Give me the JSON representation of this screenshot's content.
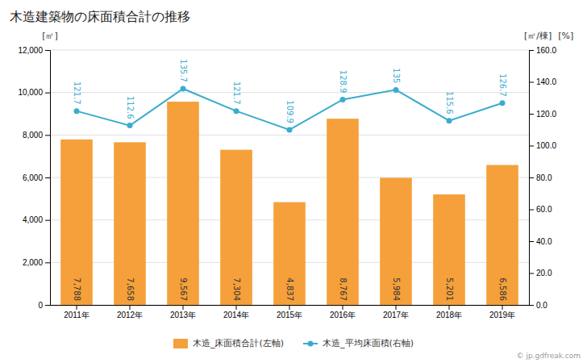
{
  "chart_data": {
    "type": "bar",
    "title": "木造建築物の床面積合計の推移",
    "categories": [
      "2011年",
      "2012年",
      "2013年",
      "2014年",
      "2015年",
      "2016年",
      "2017年",
      "2018年",
      "2019年"
    ],
    "series": [
      {
        "name": "木造_床面積合計(左軸)",
        "type": "bar",
        "color": "#f5a03a",
        "values": [
          7788,
          7658,
          9567,
          7304,
          4837,
          8767,
          5984,
          5201,
          6586
        ],
        "value_labels": [
          "7,788",
          "7,658",
          "9,567",
          "7,304",
          "4,837",
          "8,767",
          "5,984",
          "5,201",
          "6,586"
        ],
        "data_labels": true
      },
      {
        "name": "木造_平均床面積(右軸)",
        "type": "line",
        "color": "#3aaccf",
        "marker": "circle",
        "axis": "y2",
        "values": [
          121.7,
          112.6,
          135.7,
          121.7,
          109.9,
          128.9,
          135,
          115.6,
          126.7
        ],
        "data_labels": true
      }
    ],
    "ylabel": "[㎡]",
    "y2label": [
      "[㎡/棟]",
      "[%]"
    ],
    "ylim": [
      0,
      12000
    ],
    "yticks": [
      0,
      {
        "value": 2000,
        "label": "2,000"
      },
      {
        "value": 4000,
        "label": "4,000"
      },
      {
        "value": 6000,
        "label": "6,000"
      },
      {
        "value": 8000,
        "label": "8,000"
      },
      {
        "value": 10000,
        "label": "10,000"
      },
      {
        "value": 12000,
        "label": "12,000"
      }
    ],
    "y2lim": [
      0,
      160
    ],
    "y2ticks": [
      {
        "value": 0,
        "label": "0.0"
      },
      {
        "value": 20,
        "label": "20.0"
      },
      {
        "value": 40,
        "label": "40.0"
      },
      {
        "value": 60,
        "label": "60.0"
      },
      {
        "value": 80,
        "label": "80.0"
      },
      {
        "value": 100,
        "label": "100.0"
      },
      {
        "value": 120,
        "label": "120.0"
      },
      {
        "value": 140,
        "label": "140.0"
      },
      {
        "value": 160,
        "label": "160.0"
      }
    ],
    "grid": true,
    "legend": "bottom",
    "annotations": [
      {
        "text": "© jp.gdfreak.com"
      }
    ]
  }
}
